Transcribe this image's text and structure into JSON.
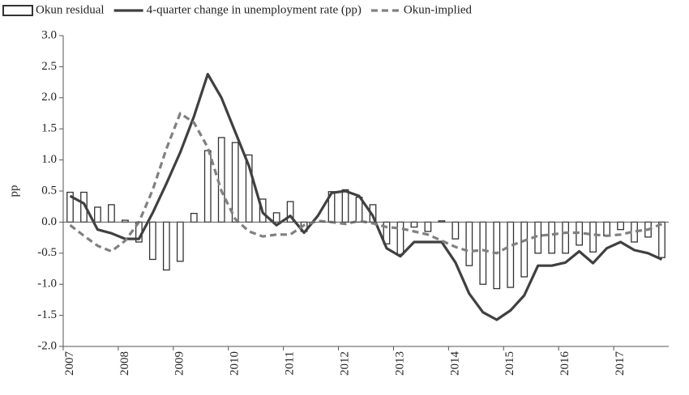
{
  "chart_data": {
    "type": "bar-line",
    "y_label": "pp",
    "categories": [
      "2007",
      null,
      null,
      null,
      "2008",
      null,
      null,
      null,
      "2009",
      null,
      null,
      null,
      "2010",
      null,
      null,
      null,
      "2011",
      null,
      null,
      null,
      "2012",
      null,
      null,
      null,
      "2013",
      null,
      null,
      null,
      "2014",
      null,
      null,
      null,
      "2015",
      null,
      null,
      null,
      "2016",
      null,
      null,
      null,
      "2017",
      null,
      null,
      null
    ],
    "series": [
      {
        "name": "Okun residual",
        "kind": "bar",
        "color": "#ffffff",
        "values": [
          0.48,
          0.48,
          0.24,
          0.28,
          0.03,
          -0.32,
          -0.6,
          -0.77,
          -0.63,
          0.14,
          1.15,
          1.36,
          1.28,
          1.08,
          0.37,
          0.15,
          0.33,
          -0.15,
          0.0,
          0.49,
          0.52,
          0.4,
          0.28,
          -0.35,
          -0.52,
          -0.08,
          -0.15,
          0.02,
          -0.27,
          -0.7,
          -1.0,
          -1.07,
          -1.05,
          -0.88,
          -0.5,
          -0.5,
          -0.5,
          -0.37,
          -0.48,
          -0.22,
          -0.12,
          -0.32,
          -0.24,
          -0.57
        ]
      },
      {
        "name": "4-quarter change in unemployment rate (pp)",
        "kind": "line",
        "color": "#404040",
        "values": [
          0.42,
          0.3,
          -0.12,
          -0.18,
          -0.27,
          -0.27,
          0.15,
          0.62,
          1.12,
          1.7,
          2.38,
          2.0,
          1.45,
          0.9,
          0.15,
          -0.05,
          0.1,
          -0.17,
          0.1,
          0.47,
          0.5,
          0.42,
          0.1,
          -0.42,
          -0.55,
          -0.32,
          -0.32,
          -0.32,
          -0.65,
          -1.15,
          -1.45,
          -1.57,
          -1.42,
          -1.18,
          -0.7,
          -0.7,
          -0.65,
          -0.47,
          -0.66,
          -0.42,
          -0.32,
          -0.45,
          -0.5,
          -0.6
        ]
      },
      {
        "name": "Okun-implied",
        "kind": "dashed",
        "color": "#808080",
        "values": [
          -0.05,
          -0.22,
          -0.38,
          -0.47,
          -0.3,
          0.0,
          0.52,
          1.18,
          1.75,
          1.6,
          1.2,
          0.5,
          0.05,
          -0.15,
          -0.23,
          -0.2,
          -0.2,
          -0.05,
          0.02,
          0.0,
          -0.03,
          0.02,
          -0.02,
          -0.08,
          -0.1,
          -0.15,
          -0.2,
          -0.3,
          -0.4,
          -0.47,
          -0.45,
          -0.5,
          -0.38,
          -0.3,
          -0.22,
          -0.2,
          -0.17,
          -0.17,
          -0.2,
          -0.22,
          -0.2,
          -0.15,
          -0.12,
          -0.03
        ]
      }
    ],
    "ylim": [
      -2,
      3
    ],
    "yticks": [
      {
        "value": -2,
        "label": "-2.0"
      },
      {
        "value": -1.5,
        "label": "-1.5"
      },
      {
        "value": -1,
        "label": "-1.0"
      },
      {
        "value": -0.5,
        "label": "-0.5"
      },
      {
        "value": 0,
        "label": "0.0"
      },
      {
        "value": 0.5,
        "label": "0.5"
      },
      {
        "value": 1,
        "label": "1.0"
      },
      {
        "value": 1.5,
        "label": "1.5"
      },
      {
        "value": 2,
        "label": "2.0"
      },
      {
        "value": 2.5,
        "label": "2.5"
      },
      {
        "value": 3,
        "label": "3.0"
      }
    ],
    "legend": "top"
  }
}
